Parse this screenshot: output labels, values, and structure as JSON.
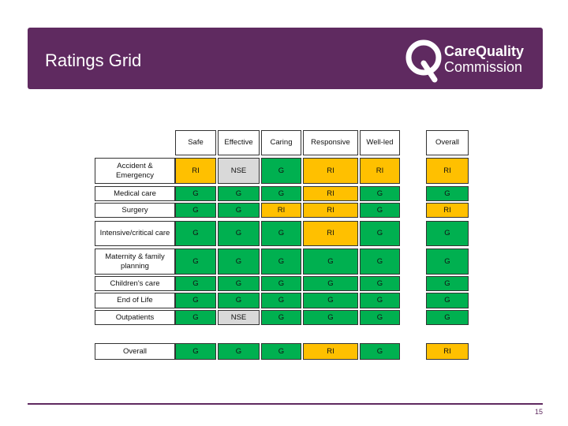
{
  "header": {
    "title": "Ratings Grid",
    "logo": {
      "line1": "CareQuality",
      "line2": "Commission"
    }
  },
  "rating_colors": {
    "G": "#00b050",
    "RI": "#ffc000",
    "NSE": "#d9d9d9"
  },
  "table": {
    "columns": [
      "Safe",
      "Effective",
      "Caring",
      "Responsive",
      "Well-led",
      "Overall"
    ],
    "rows": [
      {
        "label": "Accident & Emergency",
        "ratings": [
          "RI",
          "NSE",
          "G",
          "RI",
          "RI",
          "RI"
        ]
      },
      {
        "label": "Medical care",
        "ratings": [
          "G",
          "G",
          "G",
          "RI",
          "G",
          "G"
        ]
      },
      {
        "label": "Surgery",
        "ratings": [
          "G",
          "G",
          "RI",
          "RI",
          "G",
          "RI"
        ]
      },
      {
        "label": "Intensive/critical care",
        "ratings": [
          "G",
          "G",
          "G",
          "RI",
          "G",
          "G"
        ]
      },
      {
        "label": "Maternity & family planning",
        "ratings": [
          "G",
          "G",
          "G",
          "G",
          "G",
          "G"
        ]
      },
      {
        "label": "Children's care",
        "ratings": [
          "G",
          "G",
          "G",
          "G",
          "G",
          "G"
        ]
      },
      {
        "label": "End of Life",
        "ratings": [
          "G",
          "G",
          "G",
          "G",
          "G",
          "G"
        ]
      },
      {
        "label": "Outpatients",
        "ratings": [
          "G",
          "NSE",
          "G",
          "G",
          "G",
          "G"
        ]
      },
      {
        "label": "Overall",
        "ratings": [
          "G",
          "G",
          "G",
          "RI",
          "G",
          "RI"
        ]
      }
    ]
  },
  "footer": {
    "page_number": "15"
  }
}
